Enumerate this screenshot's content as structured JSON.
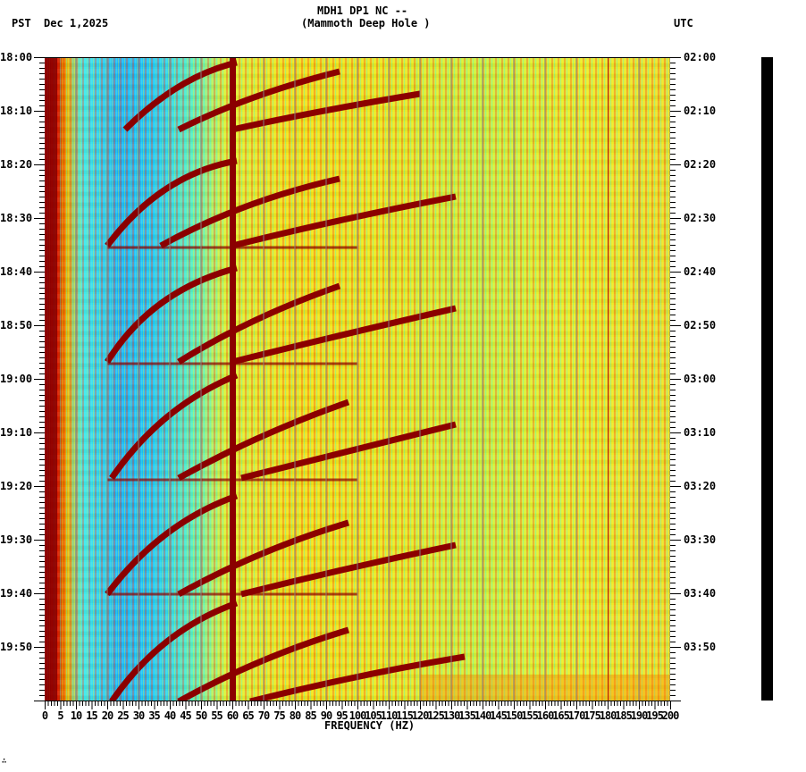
{
  "header": {
    "station": "MDH1 DP1 NC --",
    "site": "(Mammoth Deep Hole )",
    "left_tz": "PST",
    "date": "Dec 1,2025",
    "right_tz": "UTC"
  },
  "axes": {
    "xlabel": "FREQUENCY (HZ)",
    "x_ticks": [
      "0",
      "5",
      "10",
      "15",
      "20",
      "25",
      "30",
      "35",
      "40",
      "45",
      "50",
      "55",
      "60",
      "65",
      "70",
      "75",
      "80",
      "85",
      "90",
      "95",
      "100",
      "105",
      "110",
      "115",
      "120",
      "125",
      "130",
      "135",
      "140",
      "145",
      "150",
      "155",
      "160",
      "165",
      "170",
      "175",
      "180",
      "185",
      "190",
      "195",
      "200"
    ],
    "left_ticks": [
      "18:00",
      "18:10",
      "18:20",
      "18:30",
      "18:40",
      "18:50",
      "19:00",
      "19:10",
      "19:20",
      "19:30",
      "19:40",
      "19:50"
    ],
    "right_ticks": [
      "02:00",
      "02:10",
      "02:20",
      "02:30",
      "02:40",
      "02:50",
      "03:00",
      "03:10",
      "03:20",
      "03:30",
      "03:40",
      "03:50"
    ]
  },
  "footer_mark": "∴",
  "chart_data": {
    "type": "heatmap",
    "title": "MDH1 DP1 NC -- (Mammoth Deep Hole )",
    "subtitle": "PST Dec 1,2025 / UTC",
    "xlabel": "FREQUENCY (HZ)",
    "ylabel_left": "PST",
    "ylabel_right": "UTC",
    "xlim": [
      0,
      200
    ],
    "ylim_left": [
      "18:00",
      "20:00"
    ],
    "ylim_right": [
      "02:00",
      "04:00"
    ],
    "x_tick_step": 5,
    "y_tick_step_minutes": 10,
    "grid": "vertical gray lines every 10 Hz",
    "colormap": "jet (blue low, red high)",
    "features": [
      {
        "name": "low-frequency energy",
        "freq_range_hz": [
          0,
          5
        ],
        "level": "high (dark red)"
      },
      {
        "name": "quiet band",
        "freq_range_hz": [
          8,
          35
        ],
        "level": "low (cyan/blue)"
      },
      {
        "name": "60 Hz electrical line",
        "freq_hz": 60,
        "level": "high (dark red)",
        "continuous": true
      },
      {
        "name": "repeating harmonic frequency sweeps",
        "freq_range_hz": [
          20,
          130
        ],
        "period_minutes": 20,
        "level": "high (dark red)"
      },
      {
        "name": "narrow line",
        "freq_hz": 180,
        "level": "moderate (red)"
      },
      {
        "name": "broadband background",
        "freq_range_hz": [
          130,
          200
        ],
        "level": "moderate (green/yellow)"
      }
    ]
  }
}
